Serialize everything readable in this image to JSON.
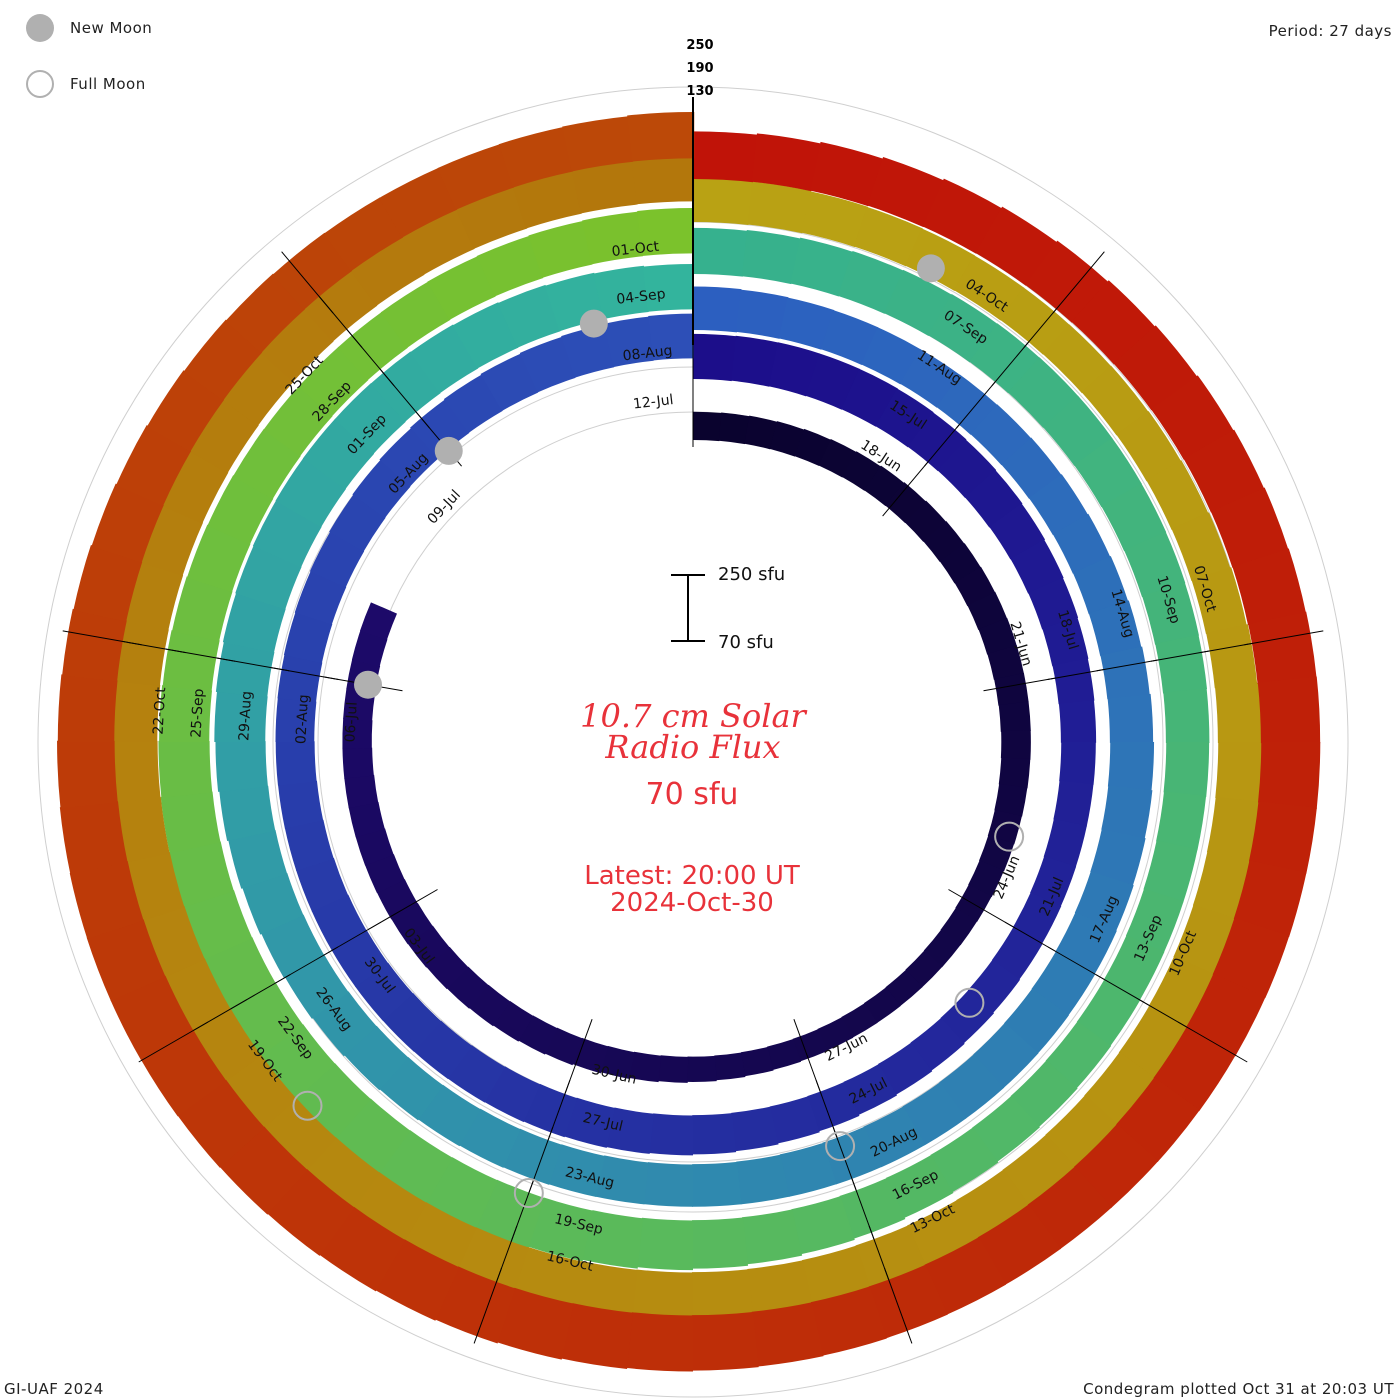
{
  "header": {
    "period": "Period: 27 days",
    "credit": "GI-UAF 2024",
    "plotted": "Condegram plotted Oct 31 at 20:03 UT"
  },
  "legend": {
    "new_moon": "New Moon",
    "full_moon": "Full Moon",
    "moon_color": "#b0b0b0"
  },
  "center": {
    "title_line1": "10.7 cm Solar",
    "title_line2": "Radio Flux",
    "current_value": "70 sfu",
    "latest_line1": "Latest: 20:00 UT",
    "latest_line2": "2024-Oct-30",
    "scale_top": "250 sfu",
    "scale_bottom": "70 sfu",
    "text_color": "#e8323a"
  },
  "chart_data": {
    "type": "condegram",
    "period_days": 27,
    "ring_scale_labels": [
      "250",
      "190",
      "130"
    ],
    "flux_baseline_sfu": 70,
    "flux_scale_top_sfu": 250,
    "rotations": [
      {
        "start": "2024-06-14",
        "color": "#0e0640",
        "day_labels": [
          "18-Jun",
          "21-Jun",
          "24-Jun",
          "27-Jun",
          "30-Jun",
          "03-Jul",
          "06-Jul",
          "09-Jul",
          "12-Jul"
        ],
        "label_days": [
          4,
          7,
          10,
          13,
          16,
          19,
          22,
          25,
          28
        ]
      },
      {
        "start": "2024-07-11",
        "color": "#2a2fb8",
        "day_labels": [
          "15-Jul",
          "18-Jul",
          "21-Jul",
          "24-Jul",
          "27-Jul",
          "30-Jul",
          "02-Aug",
          "05-Aug",
          "08-Aug"
        ],
        "label_days": [
          4,
          7,
          10,
          13,
          16,
          19,
          22,
          25,
          28
        ]
      },
      {
        "start": "2024-08-07",
        "color": "#2e96b8",
        "day_labels": [
          "11-Aug",
          "14-Aug",
          "17-Aug",
          "20-Aug",
          "23-Aug",
          "26-Aug",
          "29-Aug",
          "01-Sep",
          "04-Sep"
        ],
        "label_days": [
          4,
          7,
          10,
          13,
          16,
          19,
          22,
          25,
          28
        ]
      },
      {
        "start": "2024-09-03",
        "color": "#38bf72",
        "day_labels": [
          "07-Sep",
          "10-Sep",
          "13-Sep",
          "16-Sep",
          "19-Sep",
          "22-Sep",
          "25-Sep",
          "28-Sep",
          "01-Oct"
        ],
        "label_days": [
          4,
          7,
          10,
          13,
          16,
          19,
          22,
          25,
          28
        ]
      },
      {
        "start": "2024-09-30",
        "color": "#a4b522",
        "day_labels": [
          "04-Oct",
          "07-Oct",
          "10-Oct",
          "13-Oct",
          "16-Oct",
          "19-Oct",
          "22-Oct",
          "25-Oct"
        ],
        "label_days": [
          4,
          7,
          10,
          13,
          16,
          19,
          22,
          25
        ]
      }
    ],
    "ring_colors": {
      "r0": [
        "#0a032e",
        "#1d0a6a"
      ],
      "r1": [
        "#1c0e8a",
        "#2d50b8"
      ],
      "r2": [
        "#2c5fc0",
        "#33b59c"
      ],
      "r3": [
        "#36b18e",
        "#7cc22a"
      ],
      "r4": [
        "#b9a214",
        "#b3760c"
      ],
      "r5": [
        "#c01308",
        "#bc4a08"
      ]
    },
    "new_moons": [
      "2024-07-05",
      "2024-08-04",
      "2024-09-02",
      "2024-10-02"
    ],
    "full_moons": [
      "2024-06-22",
      "2024-07-21",
      "2024-08-19",
      "2024-09-18",
      "2024-10-17"
    ]
  }
}
